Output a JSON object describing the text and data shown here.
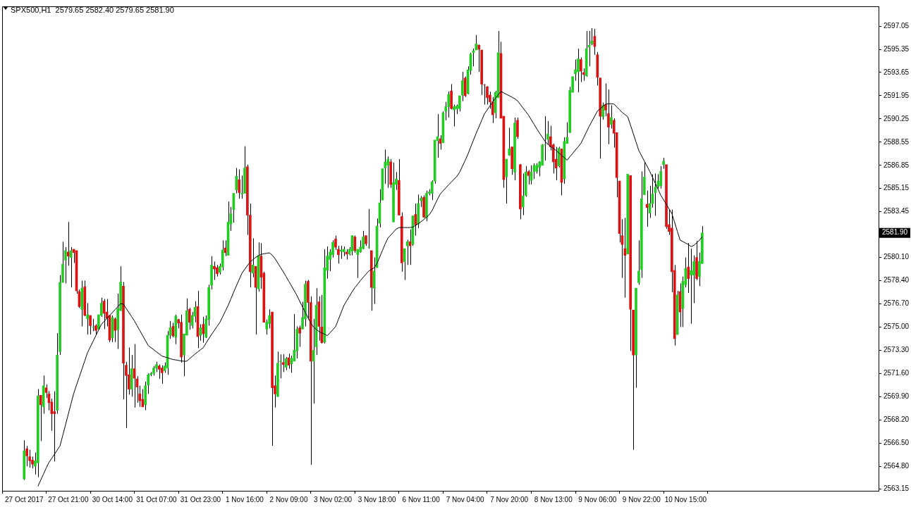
{
  "chart_data": {
    "type": "candlestick",
    "title": "SPX500,H1  2579.65 2582.40 2579.65 2581.90",
    "categories": [
      "27 Oct 2017",
      null,
      null,
      null,
      null,
      null,
      null,
      null,
      null,
      null,
      null,
      null,
      null,
      null,
      null,
      null,
      "27 Oct 21:00",
      null,
      null,
      null,
      null,
      null,
      null,
      null,
      null,
      null,
      null,
      null,
      null,
      null,
      null,
      null,
      "30 Oct 14:00",
      null,
      null,
      null,
      null,
      null,
      null,
      null,
      null,
      null,
      null,
      null,
      null,
      null,
      null,
      null,
      "31 Oct 07:00",
      null,
      null,
      null,
      null,
      null,
      null,
      null,
      null,
      null,
      null,
      null,
      null,
      null,
      null,
      null,
      "31 Oct 23:00",
      null,
      null,
      null,
      null,
      null,
      null,
      null,
      null,
      null,
      null,
      null,
      null,
      null,
      null,
      null,
      "1 Nov 16:00",
      null,
      null,
      null,
      null,
      null,
      null,
      null,
      null,
      null,
      null,
      null,
      null,
      null,
      null,
      null,
      "2 Nov 09:00",
      null,
      null,
      null,
      null,
      null,
      null,
      null,
      null,
      null,
      null,
      null,
      null,
      null,
      null,
      null,
      "3 Nov 02:00",
      null,
      null,
      null,
      null,
      null,
      null,
      null,
      null,
      null,
      null,
      null,
      null,
      null,
      null,
      null,
      "3 Nov 18:00",
      null,
      null,
      null,
      null,
      null,
      null,
      null,
      null,
      null,
      null,
      null,
      null,
      null,
      null,
      null,
      "6 Nov 11:00",
      null,
      null,
      null,
      null,
      null,
      null,
      null,
      null,
      null,
      null,
      null,
      null,
      null,
      null,
      null,
      "7 Nov 04:00",
      null,
      null,
      null,
      null,
      null,
      null,
      null,
      null,
      null,
      null,
      null,
      null,
      null,
      null,
      null,
      "7 Nov 20:00",
      null,
      null,
      null,
      null,
      null,
      null,
      null,
      null,
      null,
      null,
      null,
      null,
      null,
      null,
      null,
      "8 Nov 13:00",
      null,
      null,
      null,
      null,
      null,
      null,
      null,
      null,
      null,
      null,
      null,
      null,
      null,
      null,
      null,
      "9 Nov 06:00",
      null,
      null,
      null,
      null,
      null,
      null,
      null,
      null,
      null,
      null,
      null,
      null,
      null,
      null,
      null,
      "9 Nov 22:00",
      null,
      null,
      null,
      null,
      null,
      null,
      null,
      null,
      null,
      null,
      null,
      null,
      null,
      null,
      null,
      "10 Nov 15:00",
      null,
      null,
      null,
      null,
      null,
      null
    ],
    "ohlc": [
      [
        2563.87,
        2566.7,
        2563.8,
        2565.93
      ],
      [
        2566.08,
        2566.29,
        2564.8,
        2565.56
      ],
      [
        2565.5,
        2566.0,
        2564.7,
        2565.2
      ],
      [
        2565.25,
        2565.5,
        2564.65,
        2564.95
      ],
      [
        2564.8,
        2565.8,
        2564.2,
        2565.2
      ],
      [
        2565.05,
        2570.45,
        2564.0,
        2569.95
      ],
      [
        2570.0,
        2570.0,
        2566.65,
        2569.3
      ],
      [
        2569.15,
        2571.45,
        2568.65,
        2570.7
      ],
      [
        2570.55,
        2570.8,
        2569.8,
        2570.2
      ],
      [
        2570.1,
        2570.3,
        2568.9,
        2569.45
      ],
      [
        2569.5,
        2569.75,
        2567.4,
        2568.65
      ],
      [
        2568.8,
        2570.3,
        2565.15,
        2568.65
      ],
      [
        2568.9,
        2574.55,
        2568.65,
        2572.95
      ],
      [
        2573.2,
        2578.8,
        2572.95,
        2578.27
      ],
      [
        2578.27,
        2581.25,
        2578.27,
        2579.6
      ],
      [
        2579.9,
        2580.85,
        2578.2,
        2580.6
      ],
      [
        2580.5,
        2582.7,
        2579.5,
        2580.2
      ],
      [
        2580.1,
        2580.85,
        2577.9,
        2580.6
      ],
      [
        2580.7,
        2580.7,
        2579.7,
        2580.45
      ],
      [
        2580.6,
        2580.6,
        2577.45,
        2577.65
      ],
      [
        2577.6,
        2577.75,
        2576.4,
        2576.5
      ],
      [
        2576.3,
        2578.4,
        2575.05,
        2577.85
      ],
      [
        2577.95,
        2578.4,
        2575.8,
        2575.85
      ],
      [
        2575.6,
        2576.75,
        2574.45,
        2575.9
      ],
      [
        2575.85,
        2575.85,
        2574.45,
        2575.1
      ],
      [
        2575.0,
        2575.6,
        2574.7,
        2575.0
      ],
      [
        2575.1,
        2575.2,
        2574.45,
        2574.75
      ],
      [
        2574.85,
        2575.9,
        2574.8,
        2575.9
      ],
      [
        2575.85,
        2577.15,
        2575.75,
        2576.75
      ],
      [
        2576.9,
        2577.05,
        2574.85,
        2576.0
      ],
      [
        2576.1,
        2577.05,
        2575.05,
        2575.65
      ],
      [
        2575.85,
        2575.85,
        2573.9,
        2574.05
      ],
      [
        2574.2,
        2575.85,
        2573.9,
        2575.7
      ],
      [
        2575.6,
        2575.7,
        2573.9,
        2574.75
      ],
      [
        2574.8,
        2577.45,
        2573.4,
        2576.35
      ],
      [
        2576.2,
        2579.45,
        2576.2,
        2578.3
      ],
      [
        2578.0,
        2578.3,
        2569.7,
        2572.35
      ],
      [
        2572.2,
        2572.45,
        2567.6,
        2571.45
      ],
      [
        2571.5,
        2573.5,
        2570.05,
        2570.45
      ],
      [
        2570.45,
        2572.95,
        2569.9,
        2571.95
      ],
      [
        2571.95,
        2573.75,
        2569.1,
        2571.25
      ],
      [
        2571.2,
        2571.4,
        2569.45,
        2570.6
      ],
      [
        2570.1,
        2570.7,
        2569.15,
        2569.6
      ],
      [
        2569.7,
        2570.45,
        2569.15,
        2569.15
      ],
      [
        2569.3,
        2571.0,
        2568.9,
        2570.7
      ],
      [
        2570.75,
        2571.6,
        2570.1,
        2571.5
      ],
      [
        2571.5,
        2571.7,
        2571.4,
        2571.6
      ],
      [
        2571.6,
        2572.15,
        2571.45,
        2572.0
      ],
      [
        2572.0,
        2572.45,
        2571.7,
        2572.25
      ],
      [
        2572.15,
        2572.25,
        2571.2,
        2571.9
      ],
      [
        2572.0,
        2572.2,
        2570.85,
        2571.65
      ],
      [
        2571.8,
        2572.4,
        2571.65,
        2572.15
      ],
      [
        2572.0,
        2574.7,
        2571.5,
        2574.4
      ],
      [
        2574.4,
        2575.45,
        2574.15,
        2574.95
      ],
      [
        2575.05,
        2575.3,
        2574.25,
        2574.35
      ],
      [
        2574.25,
        2575.9,
        2573.75,
        2575.8
      ],
      [
        2575.55,
        2575.6,
        2574.9,
        2575.3
      ],
      [
        2575.35,
        2575.9,
        2572.4,
        2572.8
      ],
      [
        2572.95,
        2574.5,
        2571.4,
        2574.5
      ],
      [
        2574.4,
        2577.1,
        2574.4,
        2576.2
      ],
      [
        2576.3,
        2576.4,
        2574.8,
        2575.35
      ],
      [
        2575.1,
        2576.1,
        2574.9,
        2575.85
      ],
      [
        2575.8,
        2576.9,
        2575.35,
        2576.45
      ],
      [
        2576.5,
        2577.65,
        2573.45,
        2574.3
      ],
      [
        2574.4,
        2575.2,
        2574.0,
        2574.95
      ],
      [
        2575.2,
        2575.75,
        2573.85,
        2574.5
      ],
      [
        2574.25,
        2575.85,
        2574.2,
        2575.6
      ],
      [
        2575.55,
        2578.1,
        2575.1,
        2577.9
      ],
      [
        2578.05,
        2580.2,
        2577.75,
        2579.55
      ],
      [
        2579.45,
        2579.8,
        2578.45,
        2579.25
      ],
      [
        2579.35,
        2579.55,
        2578.7,
        2578.9
      ],
      [
        2579.0,
        2579.65,
        2578.85,
        2579.45
      ],
      [
        2579.4,
        2581.35,
        2579.15,
        2580.65
      ],
      [
        2580.8,
        2581.35,
        2580.2,
        2580.45
      ],
      [
        2580.25,
        2584.2,
        2580.25,
        2582.7
      ],
      [
        2582.55,
        2583.8,
        2582.05,
        2583.3
      ],
      [
        2583.6,
        2584.8,
        2582.65,
        2584.8
      ],
      [
        2585.05,
        2586.65,
        2584.8,
        2586.05
      ],
      [
        2585.8,
        2586.55,
        2584.4,
        2584.85
      ],
      [
        2584.75,
        2586.1,
        2584.4,
        2584.8
      ],
      [
        2584.8,
        2588.25,
        2584.8,
        2586.65
      ],
      [
        2586.75,
        2586.9,
        2581.75,
        2583.2
      ],
      [
        2583.2,
        2584.05,
        2577.9,
        2579.05
      ],
      [
        2578.95,
        2581.5,
        2578.65,
        2579.55
      ],
      [
        2579.45,
        2579.45,
        2574.45,
        2577.9
      ],
      [
        2577.8,
        2581.2,
        2577.6,
        2580.25
      ],
      [
        2580.2,
        2581.15,
        2577.8,
        2578.65
      ],
      [
        2578.95,
        2579.05,
        2575.35,
        2575.35
      ],
      [
        2574.85,
        2575.55,
        2574.45,
        2575.35
      ],
      [
        2575.25,
        2576.3,
        2574.9,
        2575.85
      ],
      [
        2576.1,
        2576.1,
        2566.3,
        2570.55
      ],
      [
        2570.7,
        2571.45,
        2569.1,
        2570.1
      ],
      [
        2569.9,
        2573.2,
        2569.9,
        2572.35
      ],
      [
        2572.45,
        2573.0,
        2571.25,
        2572.5
      ],
      [
        2572.4,
        2573.0,
        2571.7,
        2572.25
      ],
      [
        2572.05,
        2572.8,
        2571.85,
        2572.7
      ],
      [
        2572.75,
        2573.05,
        2571.95,
        2572.2
      ],
      [
        2572.3,
        2572.9,
        2571.65,
        2572.7
      ],
      [
        2572.5,
        2575.95,
        2572.5,
        2573.3
      ],
      [
        2573.25,
        2575.05,
        2572.7,
        2574.85
      ],
      [
        2574.95,
        2575.1,
        2573.55,
        2574.55
      ],
      [
        2574.85,
        2576.85,
        2574.85,
        2575.7
      ],
      [
        2575.6,
        2578.4,
        2575.05,
        2578.15
      ],
      [
        2578.35,
        2578.45,
        2575.55,
        2576.8
      ],
      [
        2576.8,
        2577.25,
        2564.9,
        2572.5
      ],
      [
        2572.5,
        2575.6,
        2569.4,
        2573.3
      ],
      [
        2573.55,
        2577.85,
        2572.95,
        2576.6
      ],
      [
        2576.85,
        2577.25,
        2574.0,
        2575.05
      ],
      [
        2575.0,
        2577.35,
        2573.8,
        2573.85
      ],
      [
        2573.9,
        2580.7,
        2573.8,
        2579.35
      ],
      [
        2579.15,
        2580.9,
        2578.55,
        2580.2
      ],
      [
        2579.95,
        2580.7,
        2579.1,
        2580.5
      ],
      [
        2580.3,
        2581.35,
        2580.1,
        2581.2
      ],
      [
        2581.45,
        2581.7,
        2580.65,
        2580.85
      ],
      [
        2580.7,
        2580.95,
        2579.65,
        2580.3
      ],
      [
        2580.55,
        2580.95,
        2580.0,
        2580.65
      ],
      [
        2580.5,
        2580.9,
        2580.2,
        2580.7
      ],
      [
        2580.5,
        2580.7,
        2579.95,
        2580.35
      ],
      [
        2580.35,
        2580.85,
        2580.25,
        2580.7
      ],
      [
        2580.55,
        2581.7,
        2580.25,
        2581.7
      ],
      [
        2581.6,
        2581.7,
        2580.45,
        2580.6
      ],
      [
        2580.3,
        2580.7,
        2578.6,
        2580.7
      ],
      [
        2580.5,
        2581.35,
        2580.45,
        2580.85
      ],
      [
        2580.75,
        2582.05,
        2580.7,
        2581.6
      ],
      [
        2581.7,
        2581.7,
        2580.95,
        2581.1
      ],
      [
        2580.85,
        2583.65,
        2580.75,
        2580.85
      ],
      [
        2580.6,
        2580.6,
        2576.2,
        2577.9
      ],
      [
        2577.85,
        2580.1,
        2576.7,
        2579.1
      ],
      [
        2579.35,
        2582.95,
        2579.35,
        2582.4
      ],
      [
        2582.6,
        2585.1,
        2582.3,
        2584.1
      ],
      [
        2584.3,
        2586.6,
        2584.3,
        2586.6
      ],
      [
        2586.65,
        2588.0,
        2585.5,
        2587.1
      ],
      [
        2586.85,
        2587.5,
        2585.2,
        2587.3
      ],
      [
        2587.1,
        2587.3,
        2585.2,
        2585.45
      ],
      [
        2582.7,
        2587.05,
        2582.7,
        2585.6
      ],
      [
        2585.45,
        2586.35,
        2585.05,
        2585.85
      ],
      [
        2585.75,
        2587.3,
        2583.2,
        2583.2
      ],
      [
        2583.1,
        2583.4,
        2579.05,
        2579.7
      ],
      [
        2579.8,
        2580.75,
        2578.45,
        2580.75
      ],
      [
        2580.95,
        2581.4,
        2579.55,
        2581.25
      ],
      [
        2581.25,
        2582.15,
        2579.55,
        2580.95
      ],
      [
        2581.05,
        2583.15,
        2580.95,
        2583.15
      ],
      [
        2583.25,
        2584.05,
        2581.7,
        2582.5
      ],
      [
        2582.55,
        2584.7,
        2582.25,
        2584.05
      ],
      [
        2584.25,
        2584.6,
        2583.8,
        2584.45
      ],
      [
        2584.5,
        2584.65,
        2583.0,
        2583.05
      ],
      [
        2583.0,
        2585.0,
        2582.75,
        2584.8
      ],
      [
        2584.8,
        2585.1,
        2584.65,
        2584.9
      ],
      [
        2584.8,
        2585.75,
        2584.3,
        2585.65
      ],
      [
        2585.7,
        2588.7,
        2585.5,
        2588.7
      ],
      [
        2588.65,
        2590.6,
        2587.4,
        2588.95
      ],
      [
        2588.8,
        2589.05,
        2588.0,
        2588.45
      ],
      [
        2588.5,
        2590.8,
        2588.5,
        2590.7
      ],
      [
        2590.8,
        2591.5,
        2590.15,
        2591.15
      ],
      [
        2591.15,
        2592.25,
        2590.35,
        2592.05
      ],
      [
        2592.3,
        2592.8,
        2590.95,
        2591.0
      ],
      [
        2590.9,
        2591.3,
        2589.7,
        2591.15
      ],
      [
        2591.0,
        2591.3,
        2590.6,
        2591.2
      ],
      [
        2591.0,
        2591.95,
        2590.8,
        2591.95
      ],
      [
        2592.0,
        2593.7,
        2591.55,
        2593.05
      ],
      [
        2593.25,
        2593.35,
        2591.85,
        2591.95
      ],
      [
        2592.1,
        2594.1,
        2592.05,
        2593.85
      ],
      [
        2593.8,
        2595.1,
        2593.5,
        2595.0
      ],
      [
        2595.1,
        2595.4,
        2594.1,
        2595.25
      ],
      [
        2595.3,
        2596.4,
        2595.3,
        2595.75
      ],
      [
        2595.65,
        2595.7,
        2593.7,
        2595.35
      ],
      [
        2595.3,
        2595.3,
        2592.0,
        2592.8
      ],
      [
        2592.75,
        2592.8,
        2591.3,
        2592.75
      ],
      [
        2592.6,
        2592.65,
        2591.3,
        2591.8
      ],
      [
        2592.0,
        2592.25,
        2591.0,
        2591.5
      ],
      [
        2591.5,
        2591.85,
        2589.95,
        2590.55
      ],
      [
        2590.7,
        2592.3,
        2590.3,
        2592.2
      ],
      [
        2591.8,
        2596.7,
        2591.8,
        2595.1
      ],
      [
        2595.05,
        2595.9,
        2590.3,
        2590.3
      ],
      [
        2590.45,
        2590.45,
        2585.2,
        2585.8
      ],
      [
        2586.0,
        2587.3,
        2584.05,
        2587.3
      ],
      [
        2587.6,
        2589.6,
        2587.55,
        2588.05
      ],
      [
        2588.2,
        2588.2,
        2586.15,
        2586.6
      ],
      [
        2586.35,
        2590.35,
        2585.75,
        2589.95
      ],
      [
        2590.15,
        2590.35,
        2588.8,
        2588.95
      ],
      [
        2586.9,
        2586.95,
        2582.9,
        2583.65
      ],
      [
        2583.8,
        2586.25,
        2583.2,
        2584.6
      ],
      [
        2584.65,
        2586.8,
        2584.55,
        2586.35
      ],
      [
        2586.4,
        2586.5,
        2585.45,
        2586.1
      ],
      [
        2585.75,
        2586.85,
        2585.45,
        2586.35
      ],
      [
        2586.4,
        2587.0,
        2585.85,
        2586.85
      ],
      [
        2586.4,
        2587.0,
        2586.25,
        2586.85
      ],
      [
        2586.7,
        2587.15,
        2586.05,
        2587.1
      ],
      [
        2586.85,
        2588.4,
        2586.85,
        2588.35
      ],
      [
        2588.35,
        2590.45,
        2587.2,
        2588.35
      ],
      [
        2588.75,
        2590.1,
        2588.4,
        2589.15
      ],
      [
        2588.95,
        2589.75,
        2587.95,
        2588.2
      ],
      [
        2588.35,
        2588.45,
        2586.25,
        2587.1
      ],
      [
        2587.3,
        2588.2,
        2585.75,
        2586.65
      ],
      [
        2586.8,
        2588.2,
        2586.7,
        2588.1
      ],
      [
        2588.05,
        2588.05,
        2584.65,
        2585.6
      ],
      [
        2585.85,
        2588.9,
        2585.5,
        2588.6
      ],
      [
        2588.45,
        2590.0,
        2588.45,
        2588.9
      ],
      [
        2589.25,
        2592.6,
        2589.25,
        2592.35
      ],
      [
        2592.2,
        2593.35,
        2592.2,
        2593.35
      ],
      [
        2593.55,
        2594.6,
        2593.05,
        2593.85
      ],
      [
        2593.7,
        2595.4,
        2592.2,
        2594.65
      ],
      [
        2594.6,
        2594.75,
        2592.95,
        2593.75
      ],
      [
        2593.65,
        2593.95,
        2593.05,
        2593.5
      ],
      [
        2593.4,
        2596.7,
        2593.35,
        2595.4
      ],
      [
        2595.5,
        2596.7,
        2594.1,
        2595.65
      ],
      [
        2595.75,
        2596.9,
        2595.65,
        2595.95
      ],
      [
        2596.3,
        2596.85,
        2594.95,
        2595.55
      ],
      [
        2594.95,
        2595.15,
        2592.7,
        2593.3
      ],
      [
        2593.25,
        2593.25,
        2587.35,
        2590.45
      ],
      [
        2590.4,
        2591.45,
        2590.2,
        2591.25
      ],
      [
        2591.3,
        2592.85,
        2590.45,
        2590.9
      ],
      [
        2590.65,
        2592.4,
        2588.4,
        2589.65
      ],
      [
        2589.85,
        2591.25,
        2589.55,
        2590.35
      ],
      [
        2590.15,
        2590.3,
        2588.15,
        2589.2
      ],
      [
        2589.25,
        2589.25,
        2584.5,
        2585.95
      ],
      [
        2585.7,
        2585.7,
        2581.2,
        2581.85
      ],
      [
        2581.7,
        2582.9,
        2578.6,
        2581.05
      ],
      [
        2580.75,
        2583.0,
        2577.15,
        2580.25
      ],
      [
        2580.35,
        2586.2,
        2580.35,
        2586.2
      ],
      [
        2586.1,
        2586.1,
        2573.25,
        2576.3
      ],
      [
        2576.25,
        2576.25,
        2566.0,
        2572.95
      ],
      [
        2572.95,
        2577.85,
        2570.55,
        2577.85
      ],
      [
        2578.25,
        2581.35,
        2578.1,
        2579.1
      ],
      [
        2579.2,
        2586.4,
        2578.6,
        2584.4
      ],
      [
        2584.7,
        2587.05,
        2584.7,
        2586.0
      ],
      [
        2584.0,
        2585.0,
        2582.35,
        2583.75
      ],
      [
        2583.35,
        2585.35,
        2583.0,
        2584.05
      ],
      [
        2584.05,
        2586.2,
        2583.75,
        2584.75
      ],
      [
        2584.85,
        2586.25,
        2583.15,
        2585.25
      ],
      [
        2585.3,
        2586.2,
        2585.15,
        2585.7
      ],
      [
        2585.35,
        2586.8,
        2585.15,
        2586.4
      ],
      [
        2586.9,
        2587.4,
        2586.6,
        2587.15
      ],
      [
        2586.9,
        2586.9,
        2582.2,
        2582.35
      ],
      [
        2582.5,
        2583.6,
        2581.75,
        2582.0
      ],
      [
        2582.25,
        2583.6,
        2577.55,
        2579.05
      ],
      [
        2579.15,
        2579.55,
        2573.65,
        2574.15
      ],
      [
        2574.45,
        2577.65,
        2574.45,
        2577.35
      ],
      [
        2577.6,
        2578.2,
        2575.0,
        2576.1
      ],
      [
        2576.35,
        2578.7,
        2575.0,
        2578.35
      ],
      [
        2578.1,
        2580.1,
        2577.9,
        2579.3
      ],
      [
        2579.4,
        2581.15,
        2577.5,
        2578.55
      ],
      [
        2578.8,
        2580.75,
        2575.25,
        2579.15
      ],
      [
        2578.8,
        2580.25,
        2576.75,
        2579.8
      ],
      [
        2580.1,
        2581.3,
        2578.45,
        2578.55
      ],
      [
        2578.7,
        2580.45,
        2578.0,
        2579.8
      ],
      [
        2579.65,
        2582.4,
        2579.65,
        2581.9
      ]
    ],
    "colors": [
      "#22cc22",
      "#dd1111",
      "#dd1111",
      "#dd1111",
      "#22cc22",
      "#22cc22",
      "#dd1111",
      "#22cc22",
      "#dd1111",
      "#dd1111",
      "#dd1111",
      "#dd1111",
      "#22cc22",
      "#22cc22",
      "#22cc22",
      "#22cc22",
      "#dd1111",
      "#22cc22",
      "#dd1111",
      "#dd1111",
      "#dd1111",
      "#22cc22",
      "#dd1111",
      "#22cc22",
      "#dd1111",
      "#22cc22",
      "#dd1111",
      "#22cc22",
      "#22cc22",
      "#dd1111",
      "#dd1111",
      "#dd1111",
      "#22cc22",
      "#dd1111",
      "#22cc22",
      "#22cc22",
      "#dd1111",
      "#dd1111",
      "#dd1111",
      "#22cc22",
      "#dd1111",
      "#dd1111",
      "#dd1111",
      "#dd1111",
      "#22cc22",
      "#22cc22",
      "#22cc22",
      "#22cc22",
      "#22cc22",
      "#dd1111",
      "#dd1111",
      "#22cc22",
      "#22cc22",
      "#22cc22",
      "#dd1111",
      "#22cc22",
      "#dd1111",
      "#dd1111",
      "#22cc22",
      "#22cc22",
      "#dd1111",
      "#22cc22",
      "#22cc22",
      "#dd1111",
      "#22cc22",
      "#dd1111",
      "#22cc22",
      "#22cc22",
      "#22cc22",
      "#dd1111",
      "#dd1111",
      "#22cc22",
      "#22cc22",
      "#dd1111",
      "#22cc22",
      "#22cc22",
      "#22cc22",
      "#22cc22",
      "#dd1111",
      "#22cc22",
      "#22cc22",
      "#dd1111",
      "#dd1111",
      "#22cc22",
      "#dd1111",
      "#22cc22",
      "#dd1111",
      "#dd1111",
      "#22cc22",
      "#22cc22",
      "#dd1111",
      "#dd1111",
      "#22cc22",
      "#22cc22",
      "#dd1111",
      "#22cc22",
      "#dd1111",
      "#22cc22",
      "#22cc22",
      "#22cc22",
      "#dd1111",
      "#22cc22",
      "#22cc22",
      "#dd1111",
      "#dd1111",
      "#22cc22",
      "#22cc22",
      "#dd1111",
      "#dd1111",
      "#22cc22",
      "#22cc22",
      "#22cc22",
      "#22cc22",
      "#dd1111",
      "#dd1111",
      "#22cc22",
      "#22cc22",
      "#dd1111",
      "#22cc22",
      "#22cc22",
      "#dd1111",
      "#22cc22",
      "#22cc22",
      "#22cc22",
      "#dd1111",
      "#22cc22",
      "#dd1111",
      "#22cc22",
      "#22cc22",
      "#22cc22",
      "#22cc22",
      "#22cc22",
      "#22cc22",
      "#dd1111",
      "#22cc22",
      "#22cc22",
      "#dd1111",
      "#dd1111",
      "#22cc22",
      "#22cc22",
      "#dd1111",
      "#22cc22",
      "#dd1111",
      "#22cc22",
      "#22cc22",
      "#dd1111",
      "#22cc22",
      "#22cc22",
      "#22cc22",
      "#22cc22",
      "#22cc22",
      "#dd1111",
      "#22cc22",
      "#22cc22",
      "#22cc22",
      "#dd1111",
      "#22cc22",
      "#22cc22",
      "#22cc22",
      "#22cc22",
      "#dd1111",
      "#22cc22",
      "#22cc22",
      "#22cc22",
      "#22cc22",
      "#dd1111",
      "#dd1111",
      "#dd1111",
      "#dd1111",
      "#dd1111",
      "#dd1111",
      "#22cc22",
      "#22cc22",
      "#dd1111",
      "#dd1111",
      "#22cc22",
      "#22cc22",
      "#dd1111",
      "#22cc22",
      "#dd1111",
      "#dd1111",
      "#22cc22",
      "#22cc22",
      "#dd1111",
      "#22cc22",
      "#22cc22",
      "#22cc22",
      "#22cc22",
      "#22cc22",
      "#22cc22",
      "#22cc22",
      "#dd1111",
      "#dd1111",
      "#dd1111",
      "#22cc22",
      "#dd1111",
      "#22cc22",
      "#22cc22",
      "#22cc22",
      "#22cc22",
      "#22cc22",
      "#22cc22",
      "#dd1111",
      "#dd1111",
      "#22cc22",
      "#22cc22",
      "#22cc22",
      "#dd1111",
      "#dd1111",
      "#dd1111",
      "#22cc22",
      "#dd1111",
      "#dd1111",
      "#22cc22",
      "#dd1111",
      "#dd1111",
      "#dd1111",
      "#dd1111",
      "#dd1111",
      "#22cc22",
      "#dd1111",
      "#dd1111",
      "#22cc22",
      "#22cc22",
      "#22cc22",
      "#22cc22",
      "#dd1111",
      "#22cc22",
      "#22cc22",
      "#22cc22",
      "#22cc22",
      "#22cc22",
      "#22cc22",
      "#dd1111",
      "#dd1111",
      "#dd1111",
      "#dd1111",
      "#22cc22",
      "#dd1111",
      "#22cc22",
      "#22cc22",
      "#dd1111",
      "#22cc22",
      "#22cc22",
      "#dd1111",
      "#22cc22",
      "#22cc22"
    ],
    "series": [
      {
        "type": "line",
        "color": "#000000",
        "values": [
          null,
          null,
          null,
          null,
          null,
          2563.33,
          2563.78,
          2564.22,
          2564.67,
          2565.08,
          2565.38,
          2565.68,
          2565.99,
          2566.29,
          2567.06,
          2567.83,
          2568.61,
          2569.38,
          2570.15,
          2570.75,
          2571.34,
          2571.94,
          2572.53,
          2573.13,
          2573.54,
          2573.95,
          2574.37,
          2574.78,
          2575.19,
          2575.41,
          2575.63,
          2575.84,
          2576.06,
          2576.28,
          2576.5,
          2576.72,
          2576.68,
          2576.37,
          2576.06,
          2575.76,
          2575.45,
          2575.09,
          2574.73,
          2574.37,
          2574.01,
          2573.65,
          2573.49,
          2573.34,
          2573.18,
          2573.03,
          2572.87,
          2572.81,
          2572.75,
          2572.68,
          2572.62,
          2572.59,
          2572.55,
          2572.52,
          2572.49,
          2572.5,
          2572.68,
          2572.85,
          2573.03,
          2573.18,
          2573.34,
          2573.49,
          2573.82,
          2574.15,
          2574.46,
          2574.75,
          2575.05,
          2575.34,
          2575.75,
          2576.17,
          2576.58,
          2577.06,
          2577.55,
          2578.02,
          2578.48,
          2578.94,
          2579.22,
          2579.51,
          2579.76,
          2579.94,
          2580.11,
          2580.22,
          2580.33,
          2580.37,
          2580.4,
          2580.44,
          2580.27,
          2580.02,
          2579.7,
          2579.37,
          2579.05,
          2578.71,
          2578.36,
          2578.01,
          2577.66,
          2577.3,
          2576.88,
          2576.47,
          2576.08,
          2575.68,
          2575.29,
          2575.0,
          2574.83,
          2574.67,
          2574.57,
          2574.47,
          2574.37,
          2574.59,
          2574.81,
          2575.03,
          2575.55,
          2576.06,
          2576.58,
          2576.92,
          2577.25,
          2577.59,
          2577.89,
          2578.14,
          2578.4,
          2578.64,
          2578.87,
          2579.1,
          2579.22,
          2579.35,
          2579.65,
          2580.13,
          2580.62,
          2581.1,
          2581.52,
          2581.74,
          2581.96,
          2582.18,
          2582.29,
          2582.29,
          2582.29,
          2582.29,
          2582.29,
          2582.32,
          2582.45,
          2582.58,
          2582.72,
          2582.88,
          2583.06,
          2583.23,
          2583.53,
          2583.96,
          2584.38,
          2584.76,
          2584.98,
          2585.2,
          2585.42,
          2585.63,
          2585.84,
          2586.04,
          2586.35,
          2586.78,
          2587.21,
          2587.66,
          2588.18,
          2588.69,
          2589.2,
          2589.67,
          2590.15,
          2590.62,
          2590.91,
          2591.21,
          2591.5,
          2591.77,
          2592.02,
          2592.27,
          2592.16,
          2592.05,
          2591.95,
          2591.84,
          2591.73,
          2591.58,
          2591.32,
          2591.05,
          2590.79,
          2590.52,
          2590.19,
          2589.86,
          2589.52,
          2589.21,
          2588.91,
          2588.61,
          2588.39,
          2588.24,
          2588.09,
          2587.94,
          2587.76,
          2587.58,
          2587.41,
          2587.23,
          2587.48,
          2587.72,
          2587.97,
          2588.21,
          2588.46,
          2588.87,
          2589.29,
          2589.7,
          2590.08,
          2590.45,
          2590.83,
          2591.0,
          2591.17,
          2591.34,
          2591.36,
          2591.36,
          2591.34,
          2591.13,
          2590.93,
          2590.72,
          2590.57,
          2590.41,
          2589.79,
          2589.18,
          2588.56,
          2587.94,
          2587.56,
          2587.17,
          2586.79,
          2586.4,
          2585.96,
          2585.53,
          2585.09,
          2584.65,
          2584.32,
          2583.99,
          2583.65,
          2583.32,
          2582.67,
          2582.01,
          2581.36,
          2581.26,
          2581.15,
          2581.05,
          2580.89,
          2580.99,
          2581.17,
          2581.36,
          2581.62
        ]
      }
    ],
    "ylim": [
      2563.0,
      2598.5
    ],
    "yticks": [
      2597.05,
      2595.35,
      2593.65,
      2591.95,
      2590.25,
      2588.55,
      2586.85,
      2585.15,
      2583.45,
      {
        "value": 2580.1,
        "label": "2580.10"
      },
      {
        "value": 2578.4,
        "label": "2578.40"
      },
      {
        "value": 2576.7,
        "label": "2576.70"
      },
      {
        "value": 2575,
        "label": "2575.00"
      },
      {
        "value": 2573.3,
        "label": "2573.30"
      },
      {
        "value": 2571.6,
        "label": "2571.60"
      },
      {
        "value": 2569.9,
        "label": "2569.90"
      },
      {
        "value": 2568.2,
        "label": "2568.20"
      },
      {
        "value": 2566.5,
        "label": "2566.50"
      },
      {
        "value": 2564.8,
        "label": "2564.80"
      },
      2563.15
    ],
    "annotations": [
      "2581.90"
    ]
  }
}
